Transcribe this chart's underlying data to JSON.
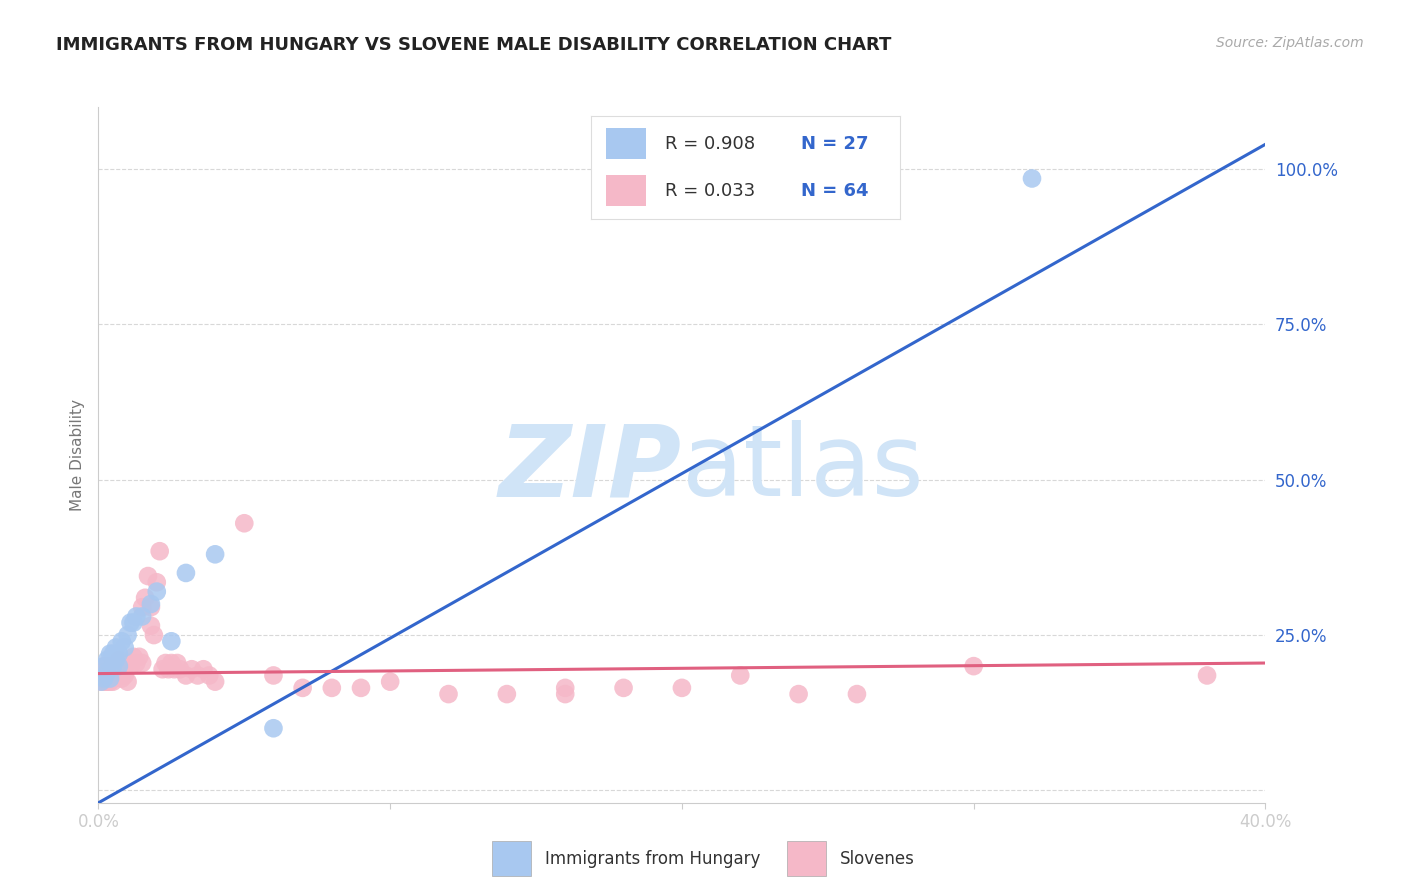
{
  "title": "IMMIGRANTS FROM HUNGARY VS SLOVENE MALE DISABILITY CORRELATION CHART",
  "source": "Source: ZipAtlas.com",
  "ylabel": "Male Disability",
  "xlim": [
    0.0,
    0.4
  ],
  "ylim": [
    -0.02,
    1.1
  ],
  "yticks": [
    0.0,
    0.25,
    0.5,
    0.75,
    1.0
  ],
  "ytick_labels": [
    "",
    "25.0%",
    "50.0%",
    "75.0%",
    "100.0%"
  ],
  "xticks": [
    0.0,
    0.1,
    0.2,
    0.3,
    0.4
  ],
  "xtick_labels": [
    "0.0%",
    "",
    "",
    "",
    "40.0%"
  ],
  "background_color": "#ffffff",
  "grid_color": "#d8d8d8",
  "blue_color": "#a8c8f0",
  "pink_color": "#f5b8c8",
  "blue_line_color": "#3366cc",
  "pink_line_color": "#e06080",
  "watermark_color": "#d0e4f7",
  "blue_scatter_x": [
    0.001,
    0.002,
    0.002,
    0.003,
    0.003,
    0.004,
    0.004,
    0.005,
    0.005,
    0.006,
    0.006,
    0.007,
    0.007,
    0.008,
    0.009,
    0.01,
    0.011,
    0.012,
    0.013,
    0.015,
    0.018,
    0.02,
    0.025,
    0.03,
    0.04,
    0.06,
    0.32
  ],
  "blue_scatter_y": [
    0.175,
    0.18,
    0.2,
    0.19,
    0.21,
    0.18,
    0.22,
    0.2,
    0.22,
    0.21,
    0.23,
    0.22,
    0.2,
    0.24,
    0.23,
    0.25,
    0.27,
    0.27,
    0.28,
    0.28,
    0.3,
    0.32,
    0.24,
    0.35,
    0.38,
    0.1,
    0.985
  ],
  "pink_scatter_x": [
    0.001,
    0.001,
    0.002,
    0.002,
    0.003,
    0.003,
    0.004,
    0.004,
    0.005,
    0.005,
    0.006,
    0.006,
    0.007,
    0.007,
    0.008,
    0.008,
    0.009,
    0.01,
    0.01,
    0.011,
    0.012,
    0.013,
    0.014,
    0.015,
    0.015,
    0.016,
    0.017,
    0.018,
    0.018,
    0.019,
    0.02,
    0.021,
    0.022,
    0.023,
    0.024,
    0.025,
    0.026,
    0.027,
    0.028,
    0.03,
    0.032,
    0.034,
    0.036,
    0.038,
    0.04,
    0.05,
    0.06,
    0.07,
    0.08,
    0.09,
    0.1,
    0.12,
    0.14,
    0.16,
    0.2,
    0.22,
    0.16,
    0.18,
    0.3,
    0.38,
    0.24,
    0.26,
    0.002,
    0.003
  ],
  "pink_scatter_y": [
    0.175,
    0.19,
    0.18,
    0.2,
    0.175,
    0.19,
    0.175,
    0.2,
    0.175,
    0.2,
    0.185,
    0.195,
    0.185,
    0.21,
    0.18,
    0.195,
    0.185,
    0.175,
    0.205,
    0.2,
    0.215,
    0.205,
    0.215,
    0.205,
    0.295,
    0.31,
    0.345,
    0.295,
    0.265,
    0.25,
    0.335,
    0.385,
    0.195,
    0.205,
    0.195,
    0.205,
    0.195,
    0.205,
    0.195,
    0.185,
    0.195,
    0.185,
    0.195,
    0.185,
    0.175,
    0.43,
    0.185,
    0.165,
    0.165,
    0.165,
    0.175,
    0.155,
    0.155,
    0.165,
    0.165,
    0.185,
    0.155,
    0.165,
    0.2,
    0.185,
    0.155,
    0.155,
    0.175,
    0.175
  ],
  "blue_trend_x0": 0.0,
  "blue_trend_y0": -0.02,
  "blue_trend_x1": 0.4,
  "blue_trend_y1": 1.04,
  "pink_trend_x0": 0.0,
  "pink_trend_y0": 0.188,
  "pink_trend_x1": 0.4,
  "pink_trend_y1": 0.205
}
